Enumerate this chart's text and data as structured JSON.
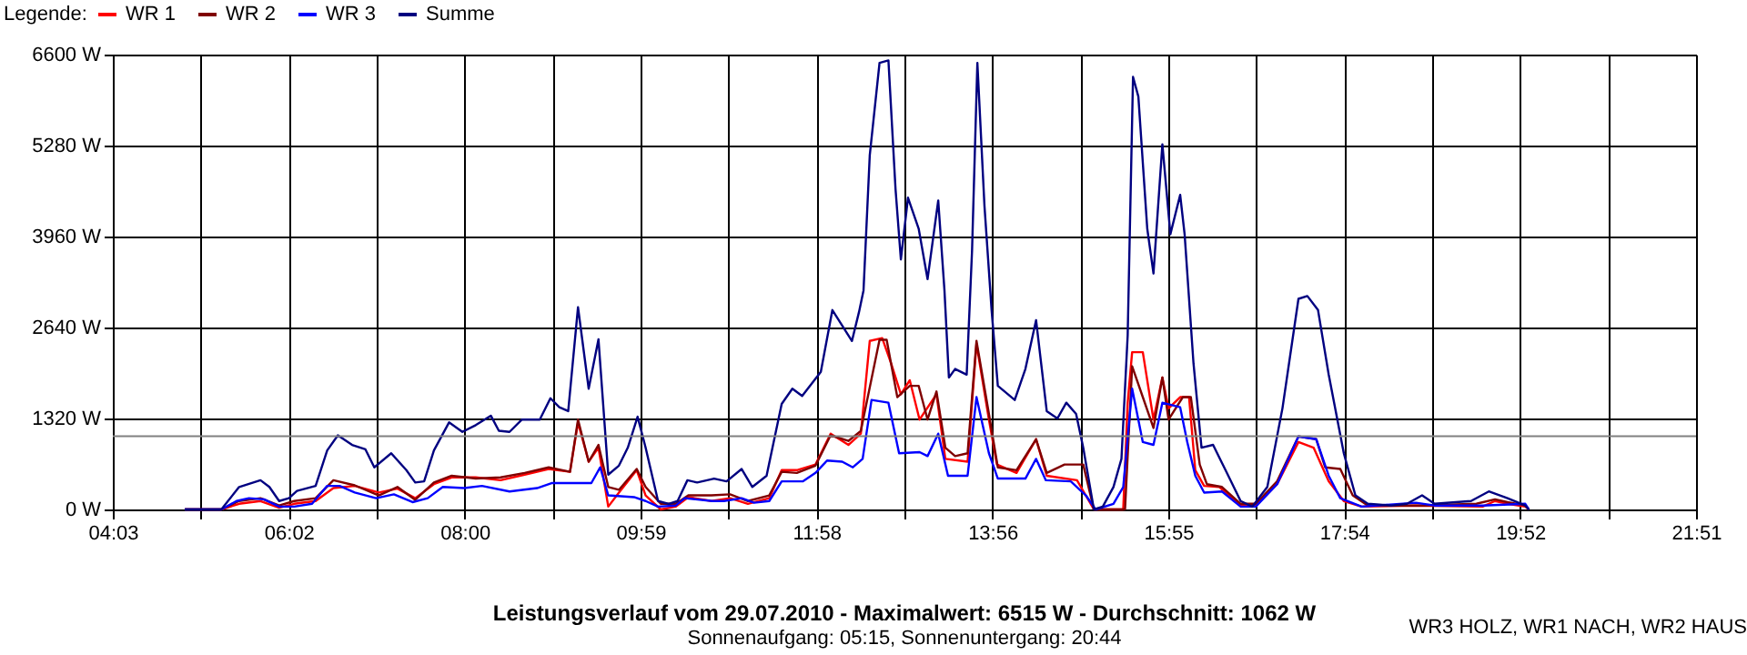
{
  "chart_data": {
    "type": "line",
    "title": "Leistungsverlauf vom 29.07.2010 - Maximalwert: 6515 W - Durchschnitt: 1062 W",
    "subtitle": "Sonnenaufgang: 05:15, Sonnenuntergang: 20:44",
    "legend_title": "Legende:",
    "legend": "top left",
    "grid": true,
    "marker": "none",
    "line_style": "solid",
    "annotations": [
      "WR3 HOLZ, WR1 NACH, WR2 HAUS"
    ],
    "xlim": [
      4.05,
      21.85
    ],
    "xticks": [
      {
        "value": 4.05,
        "label": "04:03"
      },
      {
        "value": 5.0389,
        "label": null
      },
      {
        "value": 6.0278,
        "label": "06:02"
      },
      {
        "value": 7.0167,
        "label": null
      },
      {
        "value": 8.0056,
        "label": "08:00"
      },
      {
        "value": 8.9944,
        "label": null
      },
      {
        "value": 9.9833,
        "label": "09:59"
      },
      {
        "value": 10.9722,
        "label": null
      },
      {
        "value": 11.9611,
        "label": "11:58"
      },
      {
        "value": 12.95,
        "label": null
      },
      {
        "value": 13.9389,
        "label": "13:56"
      },
      {
        "value": 14.9278,
        "label": null
      },
      {
        "value": 15.9167,
        "label": "15:55"
      },
      {
        "value": 16.9056,
        "label": null
      },
      {
        "value": 17.8944,
        "label": "17:54"
      },
      {
        "value": 18.8833,
        "label": null
      },
      {
        "value": 19.8722,
        "label": "19:52"
      },
      {
        "value": 20.8611,
        "label": null
      },
      {
        "value": 21.85,
        "label": "21:51"
      }
    ],
    "ylim": [
      0,
      6600
    ],
    "yticks": [
      {
        "value": 0,
        "label": "0 W"
      },
      {
        "value": 1320,
        "label": "1320 W"
      },
      {
        "value": 2640,
        "label": "2640 W"
      },
      {
        "value": 3960,
        "label": "3960 W"
      },
      {
        "value": 5280,
        "label": "5280 W"
      },
      {
        "value": 6600,
        "label": "6600 W"
      }
    ],
    "ref_lines": [
      {
        "axis": "y",
        "value": 1062,
        "label": null,
        "color": "#808080"
      }
    ],
    "series": [
      {
        "name": "WR 1",
        "color": "#ff0000",
        "x": [
          4.86,
          5.27,
          5.47,
          5.71,
          5.92,
          6.09,
          6.33,
          6.53,
          6.77,
          7.04,
          7.25,
          7.45,
          7.66,
          7.86,
          8.13,
          8.41,
          8.68,
          8.95,
          9.19,
          9.28,
          9.4,
          9.51,
          9.62,
          9.74,
          9.94,
          10.04,
          10.21,
          10.38,
          10.52,
          10.78,
          10.99,
          11.19,
          11.43,
          11.57,
          11.74,
          11.95,
          12.12,
          12.32,
          12.46,
          12.56,
          12.7,
          12.8,
          12.91,
          13.01,
          13.12,
          13.31,
          13.41,
          13.66,
          13.76,
          13.9,
          13.99,
          14.21,
          14.43,
          14.55,
          14.89,
          15.08,
          15.41,
          15.46,
          15.51,
          15.63,
          15.75,
          15.85,
          15.92,
          16.05,
          16.15,
          16.22,
          16.32,
          16.49,
          16.73,
          16.9,
          17.14,
          17.38,
          17.55,
          17.72,
          17.89,
          18.09,
          18.7,
          19.45,
          19.59,
          19.73,
          19.93,
          19.97
        ],
        "values": [
          0,
          0,
          82,
          122,
          24,
          82,
          122,
          310,
          342,
          245,
          302,
          163,
          367,
          465,
          465,
          424,
          505,
          587,
          546,
          1263,
          693,
          897,
          41,
          245,
          570,
          204,
          0,
          41,
          179,
          122,
          163,
          82,
          163,
          570,
          570,
          652,
          1100,
          937,
          1100,
          2445,
          2486,
          2119,
          1671,
          1875,
          1304,
          1671,
          734,
          693,
          2404,
          1304,
          652,
          530,
          1019,
          489,
          424,
          0,
          0,
          1549,
          2282,
          2282,
          1304,
          1915,
          1467,
          1630,
          1630,
          570,
          342,
          326,
          57,
          57,
          367,
          978,
          897,
          408,
          122,
          41,
          57,
          41,
          122,
          82,
          41,
          0
        ]
      },
      {
        "name": "WR 2",
        "color": "#800000",
        "x": [
          4.86,
          5.27,
          5.47,
          5.71,
          5.92,
          6.09,
          6.33,
          6.53,
          6.77,
          7.04,
          7.25,
          7.45,
          7.66,
          7.86,
          8.13,
          8.41,
          8.68,
          8.95,
          9.19,
          9.28,
          9.4,
          9.51,
          9.62,
          9.74,
          9.94,
          10.04,
          10.21,
          10.38,
          10.52,
          10.78,
          10.99,
          11.19,
          11.43,
          11.57,
          11.74,
          11.95,
          12.12,
          12.32,
          12.46,
          12.67,
          12.75,
          12.87,
          13.01,
          13.11,
          13.21,
          13.31,
          13.41,
          13.52,
          13.66,
          13.76,
          13.9,
          14.0,
          14.21,
          14.43,
          14.55,
          14.75,
          14.96,
          15.08,
          15.43,
          15.51,
          15.63,
          15.75,
          15.85,
          15.92,
          16.08,
          16.17,
          16.27,
          16.35,
          16.52,
          16.73,
          16.9,
          17.14,
          17.38,
          17.58,
          17.68,
          17.85,
          17.99,
          18.16,
          18.77,
          19.38,
          19.59,
          19.73,
          19.93,
          19.97
        ],
        "values": [
          0,
          0,
          122,
          163,
          57,
          122,
          163,
          424,
          350,
          204,
          326,
          139,
          391,
          489,
          448,
          465,
          530,
          611,
          546,
          1304,
          693,
          937,
          326,
          285,
          587,
          326,
          82,
          82,
          204,
          204,
          220,
          122,
          204,
          546,
          530,
          636,
          1076,
          994,
          1141,
          2461,
          2461,
          1630,
          1793,
          1793,
          1304,
          1712,
          897,
          774,
          815,
          2445,
          1386,
          611,
          570,
          1019,
          530,
          652,
          652,
          0,
          0,
          2078,
          1630,
          1182,
          1915,
          1304,
          1630,
          1630,
          652,
          367,
          326,
          82,
          82,
          408,
          1060,
          1019,
          611,
          587,
          204,
          57,
          57,
          82,
          147,
          106,
          57,
          0
        ]
      },
      {
        "name": "WR 3",
        "color": "#0000ff",
        "x": [
          4.86,
          5.27,
          5.44,
          5.58,
          5.75,
          5.92,
          6.09,
          6.29,
          6.46,
          6.6,
          6.77,
          7.01,
          7.21,
          7.42,
          7.59,
          7.76,
          8.0,
          8.2,
          8.51,
          8.82,
          8.99,
          9.43,
          9.53,
          9.62,
          9.91,
          10.04,
          10.18,
          10.38,
          10.48,
          10.79,
          10.92,
          11.12,
          11.26,
          11.43,
          11.57,
          11.81,
          11.95,
          12.08,
          12.25,
          12.37,
          12.48,
          12.58,
          12.77,
          12.89,
          13.12,
          13.21,
          13.33,
          13.44,
          13.66,
          13.76,
          13.9,
          14.0,
          14.31,
          14.43,
          14.54,
          14.82,
          14.99,
          15.1,
          15.3,
          15.41,
          15.51,
          15.63,
          15.75,
          15.85,
          16.05,
          16.13,
          16.22,
          16.32,
          16.52,
          16.73,
          16.9,
          17.14,
          17.38,
          17.58,
          17.72,
          17.85,
          18.09,
          18.7,
          18.91,
          19.45,
          19.93,
          19.97
        ],
        "values": [
          0,
          0,
          122,
          163,
          147,
          41,
          41,
          82,
          342,
          342,
          245,
          163,
          220,
          106,
          163,
          326,
          310,
          342,
          261,
          310,
          383,
          383,
          611,
          204,
          179,
          122,
          41,
          57,
          163,
          122,
          122,
          163,
          98,
          122,
          408,
          408,
          530,
          709,
          693,
          611,
          734,
          1589,
          1549,
          815,
          831,
          774,
          1100,
          489,
          489,
          1630,
          815,
          448,
          448,
          734,
          424,
          408,
          204,
          0,
          82,
          326,
          1752,
          978,
          937,
          1549,
          1483,
          978,
          489,
          245,
          261,
          41,
          41,
          367,
          1060,
          1019,
          489,
          163,
          41,
          98,
          57,
          57,
          82,
          0
        ]
      },
      {
        "name": "Summe",
        "color": "#000080",
        "x": [
          4.86,
          5.27,
          5.47,
          5.71,
          5.81,
          5.92,
          6.03,
          6.12,
          6.33,
          6.46,
          6.58,
          6.74,
          6.89,
          6.99,
          7.18,
          7.35,
          7.45,
          7.55,
          7.66,
          7.83,
          7.98,
          8.13,
          8.3,
          8.39,
          8.51,
          8.65,
          8.85,
          8.97,
          9.07,
          9.17,
          9.28,
          9.4,
          9.51,
          9.62,
          9.74,
          9.84,
          9.95,
          10.04,
          10.18,
          10.3,
          10.4,
          10.51,
          10.62,
          10.81,
          10.95,
          11.12,
          11.24,
          11.4,
          11.57,
          11.69,
          11.8,
          12.01,
          12.14,
          12.36,
          12.44,
          12.49,
          12.56,
          12.67,
          12.77,
          12.85,
          12.91,
          12.99,
          13.11,
          13.21,
          13.33,
          13.4,
          13.45,
          13.52,
          13.65,
          13.71,
          13.77,
          13.85,
          13.93,
          14.0,
          14.19,
          14.31,
          14.43,
          14.55,
          14.67,
          14.77,
          14.88,
          14.96,
          15.08,
          15.18,
          15.3,
          15.39,
          15.46,
          15.52,
          15.58,
          15.68,
          15.75,
          15.85,
          15.94,
          16.05,
          16.1,
          16.2,
          16.29,
          16.42,
          16.56,
          16.73,
          16.86,
          17.03,
          17.2,
          17.38,
          17.48,
          17.6,
          17.72,
          17.89,
          18.02,
          18.16,
          18.43,
          18.6,
          18.77,
          18.91,
          19.32,
          19.52,
          19.73,
          19.93,
          19.97
        ],
        "values": [
          0,
          0,
          326,
          424,
          326,
          122,
          163,
          269,
          342,
          856,
          1076,
          937,
          872,
          611,
          815,
          570,
          391,
          408,
          856,
          1263,
          1125,
          1223,
          1361,
          1141,
          1125,
          1304,
          1304,
          1614,
          1483,
          1426,
          2934,
          1752,
          2469,
          505,
          636,
          897,
          1345,
          897,
          122,
          82,
          122,
          424,
          391,
          448,
          408,
          587,
          326,
          489,
          1532,
          1752,
          1646,
          1997,
          2893,
          2445,
          2869,
          3179,
          5135,
          6479,
          6515,
          4646,
          3627,
          4524,
          4075,
          3342,
          4483,
          3179,
          1915,
          2038,
          1956,
          3749,
          6479,
          4401,
          2893,
          1793,
          1589,
          2038,
          2747,
          1426,
          1320,
          1549,
          1386,
          897,
          0,
          41,
          326,
          734,
          2527,
          6276,
          5991,
          4075,
          3423,
          5298,
          3994,
          4564,
          3994,
          2119,
          897,
          937,
          570,
          122,
          41,
          326,
          1467,
          3056,
          3097,
          2893,
          1956,
          815,
          204,
          82,
          57,
          82,
          204,
          82,
          122,
          261,
          163,
          57,
          0
        ]
      }
    ]
  }
}
